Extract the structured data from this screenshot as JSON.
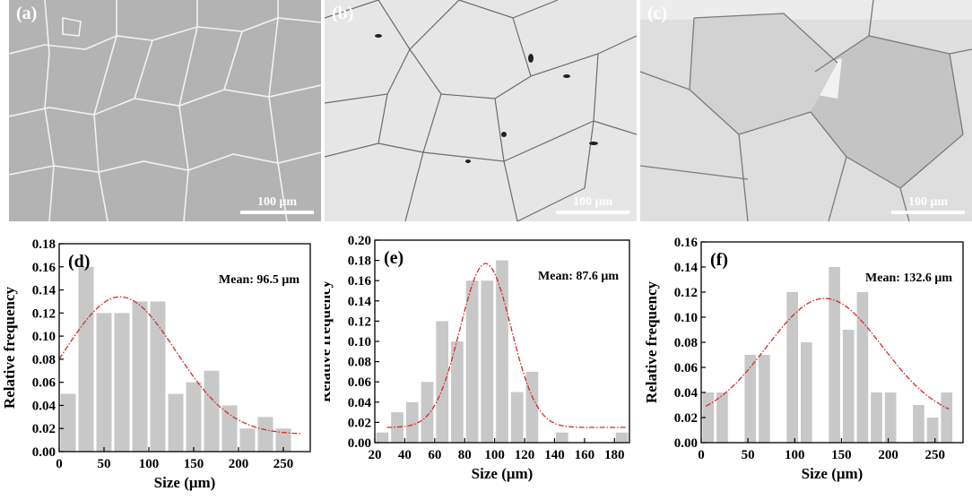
{
  "micrographs": [
    {
      "label": "(a)",
      "scale_bar": "100 μm",
      "tone": "#b3b3b3",
      "boundary": "#f2f2f2"
    },
    {
      "label": "(b)",
      "scale_bar": "100 μm",
      "tone": "#e6e6e6",
      "boundary": "#6c6c6c"
    },
    {
      "label": "(c)",
      "scale_bar": "100 μm",
      "tone": "#dedede",
      "boundary": "#7a7a7a"
    }
  ],
  "colors": {
    "bar": "#c8c8c8",
    "fit": "#d42a2a",
    "axis": "#000000"
  },
  "chart_data": [
    {
      "type": "bar",
      "panel_label": "(d)",
      "annotation": "Mean: 96.5 μm",
      "xlabel": "Size (μm)",
      "ylabel": "Relative frequency",
      "xlim": [
        0,
        280
      ],
      "ylim": [
        0,
        0.18
      ],
      "xticks": [
        0,
        50,
        100,
        150,
        200,
        250
      ],
      "yticks": [
        0.0,
        0.02,
        0.04,
        0.06,
        0.08,
        0.1,
        0.12,
        0.14,
        0.16,
        0.18
      ],
      "bin_width": 20,
      "x": [
        10,
        30,
        50,
        70,
        90,
        110,
        130,
        150,
        170,
        190,
        210,
        230,
        250
      ],
      "values": [
        0.05,
        0.16,
        0.12,
        0.12,
        0.13,
        0.13,
        0.05,
        0.06,
        0.07,
        0.04,
        0.02,
        0.03,
        0.02
      ],
      "fit": {
        "type": "gaussian",
        "peak_x": 68,
        "peak_y": 0.134,
        "sigma": 62,
        "baseline": 0.015,
        "x_range": [
          0,
          270
        ]
      }
    },
    {
      "type": "bar",
      "panel_label": "(e)",
      "annotation": "Mean: 87.6 μm",
      "xlabel": "Size (μm)",
      "ylabel": "Relative frequency",
      "xlim": [
        20,
        190
      ],
      "ylim": [
        0,
        0.2
      ],
      "xticks": [
        20,
        40,
        60,
        80,
        100,
        120,
        140,
        160,
        180
      ],
      "yticks": [
        0.0,
        0.02,
        0.04,
        0.06,
        0.08,
        0.1,
        0.12,
        0.14,
        0.16,
        0.18,
        0.2
      ],
      "bin_width": 10,
      "x": [
        25,
        35,
        45,
        55,
        65,
        75,
        85,
        95,
        105,
        115,
        125,
        145,
        185
      ],
      "values": [
        0.01,
        0.03,
        0.04,
        0.06,
        0.12,
        0.1,
        0.16,
        0.16,
        0.18,
        0.05,
        0.07,
        0.01,
        0.01
      ],
      "fit": {
        "type": "gaussian",
        "peak_x": 94,
        "peak_y": 0.177,
        "sigma": 17,
        "baseline": 0.015,
        "x_range": [
          28,
          188
        ]
      }
    },
    {
      "type": "bar",
      "panel_label": "(f)",
      "annotation": "Mean: 132.6 μm",
      "xlabel": "Size (μm)",
      "ylabel": "Relative frequency",
      "xlim": [
        0,
        280
      ],
      "ylim": [
        0,
        0.16
      ],
      "xticks": [
        0,
        50,
        100,
        150,
        200,
        250
      ],
      "yticks": [
        0.0,
        0.02,
        0.04,
        0.06,
        0.08,
        0.1,
        0.12,
        0.14,
        0.16
      ],
      "bin_width": 15,
      "x": [
        7.5,
        22.5,
        52.5,
        67.5,
        97.5,
        112.5,
        142.5,
        157.5,
        172.5,
        187.5,
        202.5,
        232.5,
        247.5,
        262.5
      ],
      "values": [
        0.04,
        0.04,
        0.07,
        0.07,
        0.12,
        0.08,
        0.14,
        0.09,
        0.12,
        0.04,
        0.04,
        0.03,
        0.02,
        0.04
      ],
      "fit": {
        "type": "gaussian",
        "peak_x": 132,
        "peak_y": 0.115,
        "sigma": 62,
        "baseline": 0.017,
        "x_range": [
          5,
          265
        ]
      }
    }
  ]
}
